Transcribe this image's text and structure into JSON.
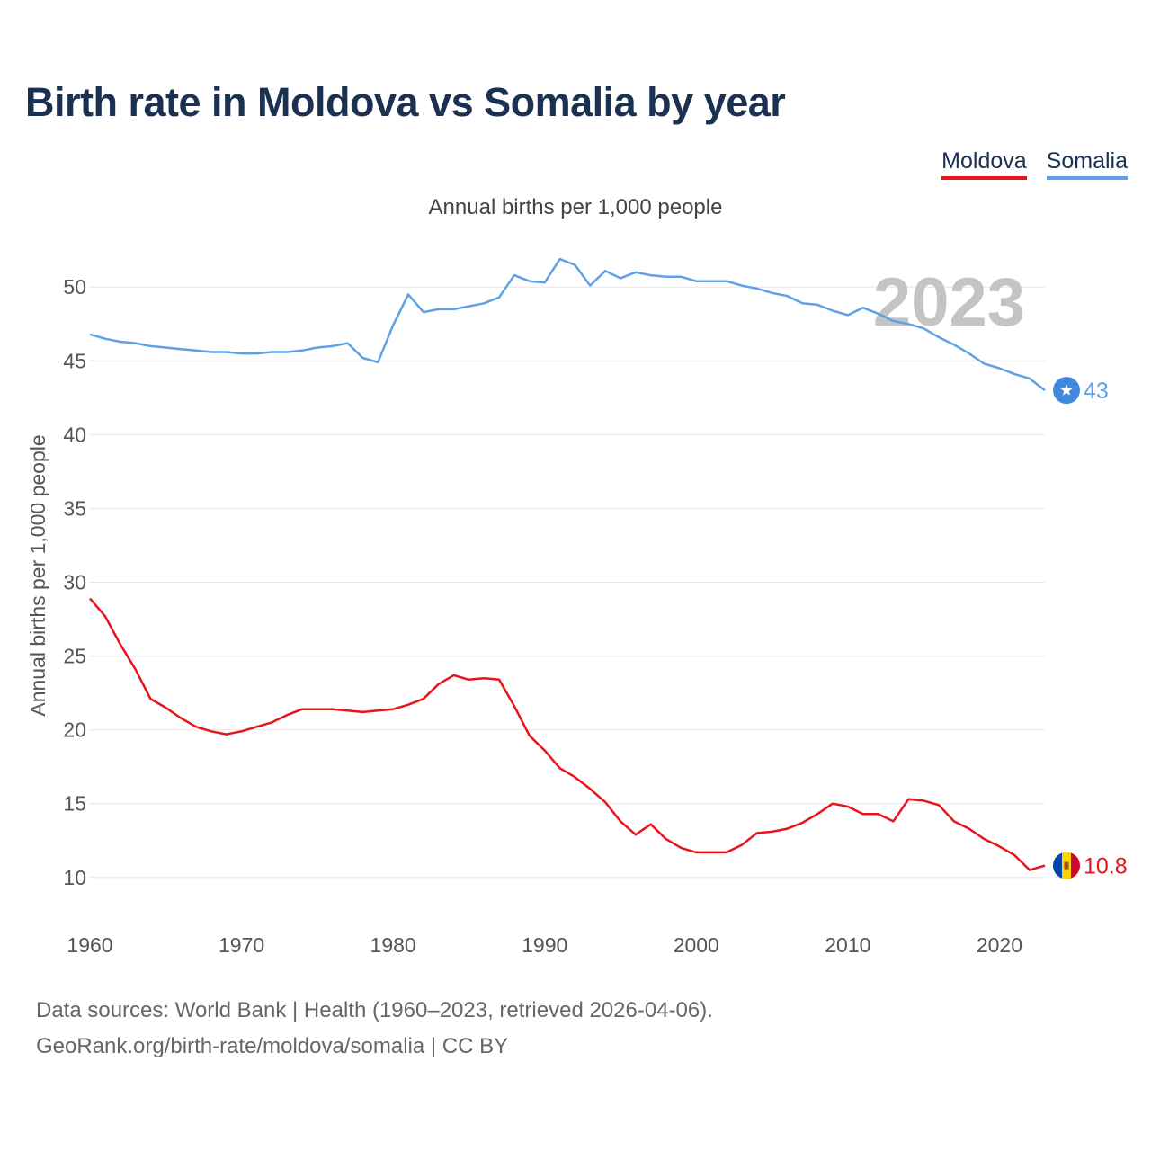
{
  "title": "Birth rate in Moldova vs Somalia by year",
  "subtitle": "Annual births per 1,000 people",
  "legend": [
    {
      "label": "Moldova",
      "color": "#e8141c"
    },
    {
      "label": "Somalia",
      "color": "#5fa2e4"
    }
  ],
  "year_label": "2023",
  "footer": {
    "line1": "Data sources: World Bank | Health (1960–2023, retrieved 2026-04-06).",
    "line2": "GeoRank.org/birth-rate/moldova/somalia | CC BY"
  },
  "chart_data": {
    "type": "line",
    "title": "Birth rate in Moldova vs Somalia by year",
    "xlabel": "",
    "ylabel": "Annual births per 1,000 people",
    "xlim": [
      1960,
      2023
    ],
    "ylim": [
      7,
      53
    ],
    "grid": true,
    "x_ticks": [
      1960,
      1970,
      1980,
      1990,
      2000,
      2010,
      2020
    ],
    "y_ticks": [
      10,
      15,
      20,
      25,
      30,
      35,
      40,
      45,
      50
    ],
    "x": [
      1960,
      1961,
      1962,
      1963,
      1964,
      1965,
      1966,
      1967,
      1968,
      1969,
      1970,
      1971,
      1972,
      1973,
      1974,
      1975,
      1976,
      1977,
      1978,
      1979,
      1980,
      1981,
      1982,
      1983,
      1984,
      1985,
      1986,
      1987,
      1988,
      1989,
      1990,
      1991,
      1992,
      1993,
      1994,
      1995,
      1996,
      1997,
      1998,
      1999,
      2000,
      2001,
      2002,
      2003,
      2004,
      2005,
      2006,
      2007,
      2008,
      2009,
      2010,
      2011,
      2012,
      2013,
      2014,
      2015,
      2016,
      2017,
      2018,
      2019,
      2020,
      2021,
      2022,
      2023
    ],
    "series": [
      {
        "name": "Moldova",
        "color": "#e8141c",
        "end_label": "10.8",
        "flag": "moldova-flag-icon",
        "values": [
          28.9,
          27.7,
          25.8,
          24.1,
          22.1,
          21.5,
          20.8,
          20.2,
          19.9,
          19.7,
          19.9,
          20.2,
          20.5,
          21.0,
          21.4,
          21.4,
          21.4,
          21.3,
          21.2,
          21.3,
          21.4,
          21.7,
          22.1,
          23.1,
          23.7,
          23.4,
          23.5,
          23.4,
          21.6,
          19.6,
          18.6,
          17.4,
          16.8,
          16.0,
          15.1,
          13.8,
          12.9,
          13.6,
          12.6,
          12.0,
          11.7,
          11.7,
          11.7,
          12.2,
          13.0,
          13.1,
          13.3,
          13.7,
          14.3,
          15.0,
          14.8,
          14.3,
          14.3,
          13.8,
          15.3,
          15.2,
          14.9,
          13.8,
          13.3,
          12.6,
          12.1,
          11.5,
          10.5,
          10.8
        ]
      },
      {
        "name": "Somalia",
        "color": "#5fa2e4",
        "end_label": "43",
        "flag": "somalia-flag-icon",
        "values": [
          46.8,
          46.5,
          46.3,
          46.2,
          46.0,
          45.9,
          45.8,
          45.7,
          45.6,
          45.6,
          45.5,
          45.5,
          45.6,
          45.6,
          45.7,
          45.9,
          46.0,
          46.2,
          45.2,
          44.9,
          47.4,
          49.5,
          48.3,
          48.5,
          48.5,
          48.7,
          48.9,
          49.3,
          50.8,
          50.4,
          50.3,
          51.9,
          51.5,
          50.1,
          51.1,
          50.6,
          51.0,
          50.8,
          50.7,
          50.7,
          50.4,
          50.4,
          50.4,
          50.1,
          49.9,
          49.6,
          49.4,
          48.9,
          48.8,
          48.4,
          48.1,
          48.6,
          48.2,
          47.7,
          47.5,
          47.2,
          46.6,
          46.1,
          45.5,
          44.8,
          44.5,
          44.1,
          43.8,
          43.0
        ]
      }
    ]
  }
}
